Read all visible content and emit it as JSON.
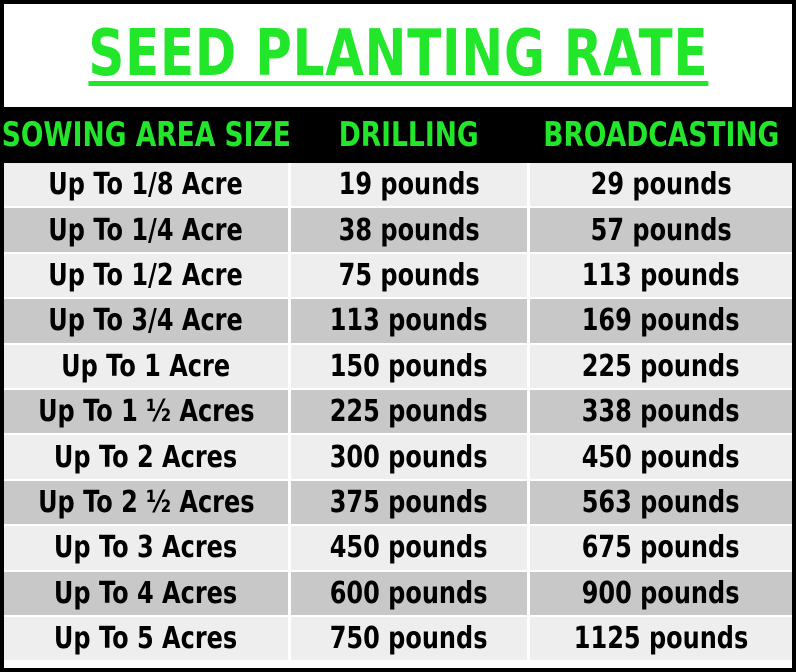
{
  "title": "SEED PLANTING RATE",
  "headers": [
    "SOWING AREA SIZE",
    "DRILLING",
    "BROADCASTING"
  ],
  "rows": [
    [
      "Up To 1/8 Acre",
      "19 pounds",
      "29 pounds"
    ],
    [
      "Up To 1/4 Acre",
      "38 pounds",
      "57 pounds"
    ],
    [
      "Up To 1/2 Acre",
      "75 pounds",
      "113 pounds"
    ],
    [
      "Up To 3/4 Acre",
      "113 pounds",
      "169 pounds"
    ],
    [
      "Up To 1 Acre",
      "150 pounds",
      "225 pounds"
    ],
    [
      "Up To 1 ½ Acres",
      "225 pounds",
      "338 pounds"
    ],
    [
      "Up To 2 Acres",
      "300 pounds",
      "450 pounds"
    ],
    [
      "Up To 2 ½ Acres",
      "375 pounds",
      "563 pounds"
    ],
    [
      "Up To 3 Acres",
      "450 pounds",
      "675 pounds"
    ],
    [
      "Up To 4 Acres",
      "600 pounds",
      "900 pounds"
    ],
    [
      "Up To 5 Acres",
      "750 pounds",
      "1125 pounds"
    ]
  ],
  "colors": {
    "title": "#22e62a",
    "header_bg": "#000000",
    "header_text": "#22e62a",
    "row_light": "#eeeeee",
    "row_dark": "#c8c8c8"
  }
}
